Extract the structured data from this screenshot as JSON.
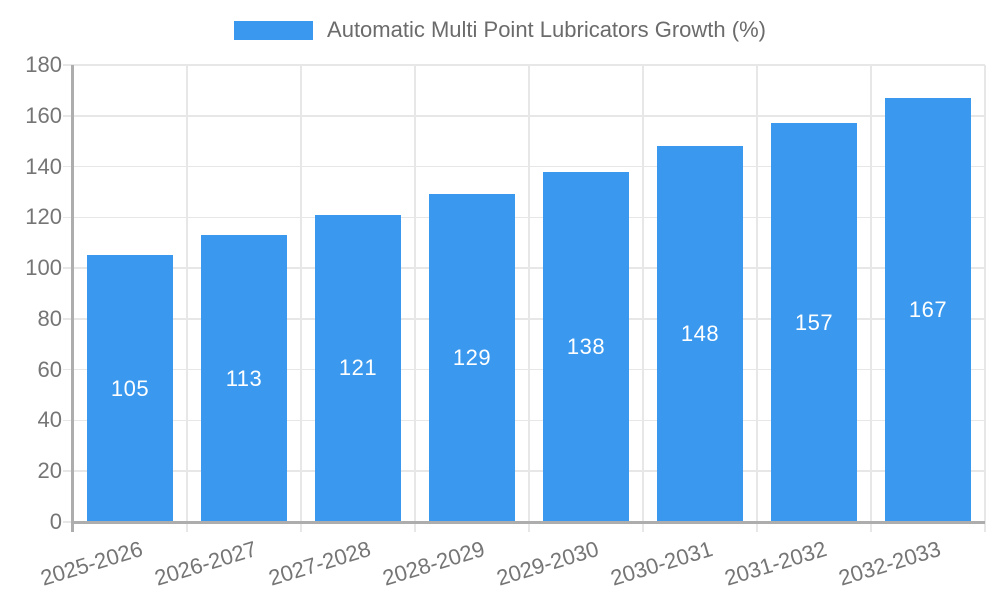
{
  "chart_data": {
    "type": "bar",
    "title": "",
    "legend_label": "Automatic Multi Point Lubricators Growth (%)",
    "legend_position": "top",
    "categories": [
      "2025-2026",
      "2026-2027",
      "2027-2028",
      "2028-2029",
      "2029-2030",
      "2030-2031",
      "2031-2032",
      "2032-2033"
    ],
    "values": [
      105,
      113,
      121,
      129,
      138,
      148,
      157,
      167
    ],
    "xlabel": "",
    "ylabel": "",
    "ylim": [
      0,
      180
    ],
    "yticks": [
      0,
      20,
      40,
      60,
      80,
      100,
      120,
      140,
      160,
      180
    ],
    "grid": true,
    "colors": {
      "bar": "#3A99EE",
      "grid": "#E7E7E7",
      "axis": "#ADADAD",
      "tick_label": "#757575",
      "legend_text": "#6B6B6B",
      "value_label": "#FFFFFF"
    }
  }
}
